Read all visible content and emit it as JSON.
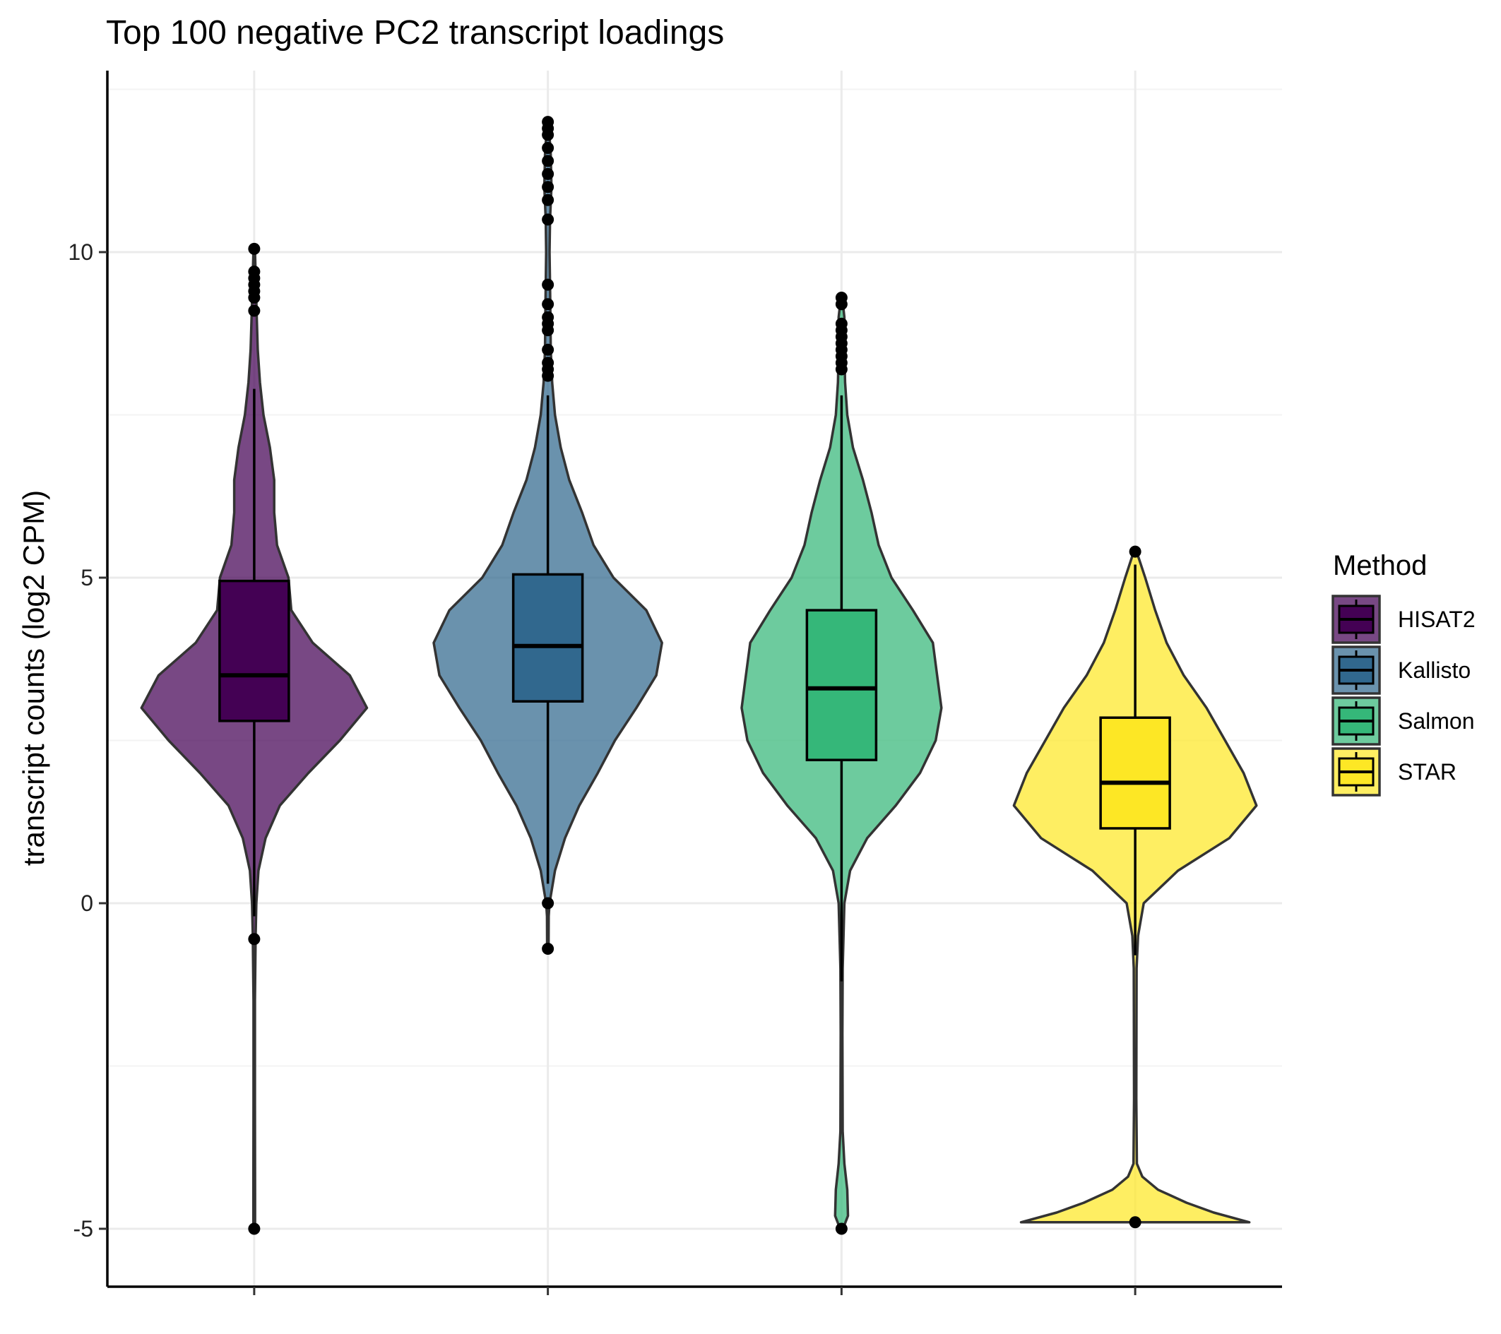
{
  "chart_data": {
    "type": "violin",
    "title": "Top 100 negative PC2 transcript loadings",
    "xlabel": "",
    "ylabel": "transcript counts (log2 CPM)",
    "ylim": [
      -5.9,
      12.8
    ],
    "y_ticks": [
      -5,
      0,
      5,
      10
    ],
    "y_tick_labels": [
      "-5",
      "0",
      "5",
      "10"
    ],
    "grid": true,
    "legend": {
      "title": "Method",
      "placement": "right"
    },
    "categories": [
      "HISAT2",
      "Kallisto",
      "Salmon",
      "STAR"
    ],
    "series": [
      {
        "name": "HISAT2",
        "fill": "#440154",
        "box": {
          "q1": 2.8,
          "median": 3.5,
          "q3": 4.95,
          "whisker_low": -0.2,
          "whisker_high": 7.9
        },
        "outliers": [
          10.05,
          9.7,
          9.6,
          9.5,
          9.4,
          9.3,
          9.1,
          -0.55,
          -5.0
        ],
        "violin": [
          [
            -5.0,
            0.006
          ],
          [
            -4.5,
            0.006
          ],
          [
            -3.0,
            0.005
          ],
          [
            -1.5,
            0.005
          ],
          [
            -0.5,
            0.01
          ],
          [
            0.0,
            0.015
          ],
          [
            0.5,
            0.03
          ],
          [
            1.0,
            0.08
          ],
          [
            1.5,
            0.18
          ],
          [
            2.0,
            0.38
          ],
          [
            2.5,
            0.6
          ],
          [
            3.0,
            0.79
          ],
          [
            3.5,
            0.67
          ],
          [
            4.0,
            0.41
          ],
          [
            4.5,
            0.26
          ],
          [
            5.0,
            0.24
          ],
          [
            5.5,
            0.16
          ],
          [
            6.0,
            0.14
          ],
          [
            6.5,
            0.14
          ],
          [
            7.0,
            0.11
          ],
          [
            7.5,
            0.065
          ],
          [
            8.0,
            0.04
          ],
          [
            8.5,
            0.025
          ],
          [
            9.0,
            0.018
          ],
          [
            9.5,
            0.012
          ],
          [
            10.05,
            0.005
          ]
        ]
      },
      {
        "name": "Kallisto",
        "fill": "#31688e",
        "box": {
          "q1": 3.1,
          "median": 3.95,
          "q3": 5.05,
          "whisker_low": 0.3,
          "whisker_high": 7.8
        },
        "outliers": [
          12.0,
          11.9,
          11.8,
          11.6,
          11.4,
          11.2,
          11.0,
          10.8,
          10.5,
          9.5,
          9.2,
          9.0,
          8.9,
          8.8,
          8.5,
          8.3,
          8.2,
          8.1,
          0.0,
          -0.7
        ],
        "violin": [
          [
            -0.7,
            0.005
          ],
          [
            -0.2,
            0.006
          ],
          [
            0.0,
            0.012
          ],
          [
            0.5,
            0.05
          ],
          [
            1.0,
            0.12
          ],
          [
            1.5,
            0.22
          ],
          [
            2.0,
            0.35
          ],
          [
            2.5,
            0.47
          ],
          [
            3.0,
            0.62
          ],
          [
            3.5,
            0.76
          ],
          [
            4.0,
            0.8
          ],
          [
            4.5,
            0.69
          ],
          [
            5.0,
            0.46
          ],
          [
            5.5,
            0.32
          ],
          [
            6.0,
            0.24
          ],
          [
            6.5,
            0.15
          ],
          [
            7.0,
            0.09
          ],
          [
            7.5,
            0.05
          ],
          [
            8.0,
            0.03
          ],
          [
            8.5,
            0.02
          ],
          [
            9.0,
            0.018
          ],
          [
            9.5,
            0.015
          ],
          [
            10.0,
            0.012
          ],
          [
            10.5,
            0.015
          ],
          [
            11.0,
            0.025
          ],
          [
            11.5,
            0.02
          ],
          [
            12.0,
            0.005
          ]
        ]
      },
      {
        "name": "Salmon",
        "fill": "#35b779",
        "box": {
          "q1": 2.2,
          "median": 3.3,
          "q3": 4.5,
          "whisker_low": -1.2,
          "whisker_high": 7.8
        },
        "outliers": [
          9.3,
          9.2,
          8.9,
          8.8,
          8.7,
          8.6,
          8.5,
          8.4,
          8.3,
          8.2,
          -5.0
        ],
        "violin": [
          [
            -5.0,
            0.01
          ],
          [
            -4.8,
            0.045
          ],
          [
            -4.4,
            0.04
          ],
          [
            -4.0,
            0.02
          ],
          [
            -3.5,
            0.008
          ],
          [
            -2.0,
            0.006
          ],
          [
            -1.0,
            0.008
          ],
          [
            0.0,
            0.02
          ],
          [
            0.5,
            0.06
          ],
          [
            1.0,
            0.18
          ],
          [
            1.5,
            0.38
          ],
          [
            2.0,
            0.55
          ],
          [
            2.5,
            0.66
          ],
          [
            3.0,
            0.7
          ],
          [
            3.5,
            0.67
          ],
          [
            4.0,
            0.64
          ],
          [
            4.5,
            0.5
          ],
          [
            5.0,
            0.35
          ],
          [
            5.5,
            0.26
          ],
          [
            6.0,
            0.21
          ],
          [
            6.5,
            0.15
          ],
          [
            7.0,
            0.08
          ],
          [
            7.5,
            0.04
          ],
          [
            8.0,
            0.025
          ],
          [
            8.5,
            0.02
          ],
          [
            9.0,
            0.02
          ],
          [
            9.3,
            0.005
          ]
        ]
      },
      {
        "name": "STAR",
        "fill": "#fde725",
        "box": {
          "q1": 1.15,
          "median": 1.85,
          "q3": 2.85,
          "whisker_low": -0.8,
          "whisker_high": 5.2
        },
        "outliers": [
          5.4,
          -4.9
        ],
        "violin": [
          [
            -4.9,
            0.8
          ],
          [
            -4.75,
            0.55
          ],
          [
            -4.6,
            0.36
          ],
          [
            -4.4,
            0.16
          ],
          [
            -4.2,
            0.05
          ],
          [
            -4.0,
            0.012
          ],
          [
            -3.0,
            0.008
          ],
          [
            -1.0,
            0.01
          ],
          [
            -0.5,
            0.02
          ],
          [
            0.0,
            0.06
          ],
          [
            0.5,
            0.3
          ],
          [
            1.0,
            0.66
          ],
          [
            1.5,
            0.85
          ],
          [
            2.0,
            0.76
          ],
          [
            2.5,
            0.63
          ],
          [
            3.0,
            0.5
          ],
          [
            3.5,
            0.34
          ],
          [
            4.0,
            0.22
          ],
          [
            4.5,
            0.14
          ],
          [
            5.0,
            0.07
          ],
          [
            5.4,
            0.01
          ]
        ]
      }
    ]
  }
}
